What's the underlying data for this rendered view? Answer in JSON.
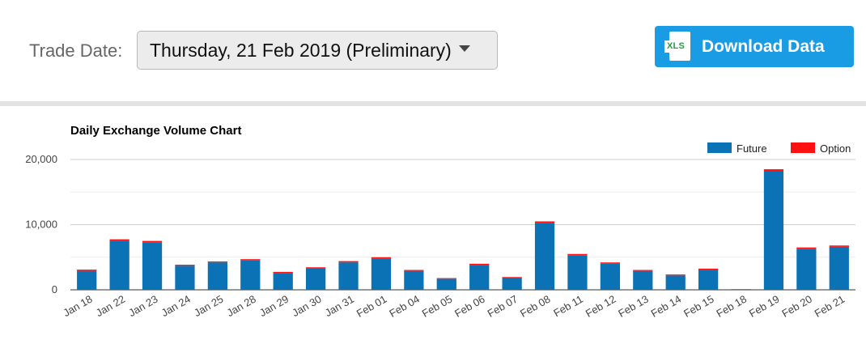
{
  "header": {
    "trade_date_label": "Trade Date:",
    "selected_date": "Thursday, 21 Feb 2019 (Preliminary)",
    "download_label": "Download Data",
    "download_icon_text": "XLS"
  },
  "colors": {
    "future": "#0b72b5",
    "option": "#ff1111",
    "button": "#1a9ce5",
    "grid": "#e3e3e3"
  },
  "chart_data": {
    "type": "bar",
    "stacked": true,
    "title": "Daily Exchange Volume Chart",
    "xlabel": "",
    "ylabel": "",
    "ylim": [
      0,
      20000
    ],
    "yticks": [
      0,
      10000,
      20000
    ],
    "ytick_labels": [
      "0",
      "10,000",
      "20,000"
    ],
    "grid": true,
    "legend_position": "top-right",
    "categories": [
      "Jan 18",
      "Jan 22",
      "Jan 23",
      "Jan 24",
      "Jan 25",
      "Jan 28",
      "Jan 29",
      "Jan 30",
      "Jan 31",
      "Feb 01",
      "Feb 04",
      "Feb 05",
      "Feb 06",
      "Feb 07",
      "Feb 08",
      "Feb 11",
      "Feb 12",
      "Feb 13",
      "Feb 14",
      "Feb 15",
      "Feb 18",
      "Feb 19",
      "Feb 20",
      "Feb 21"
    ],
    "series": [
      {
        "name": "Future",
        "color": "#0b72b5",
        "values": [
          2900,
          7500,
          7300,
          3700,
          4200,
          4500,
          2600,
          3300,
          4200,
          4800,
          2900,
          1700,
          3800,
          1800,
          10200,
          5300,
          4000,
          2900,
          2200,
          3100,
          100,
          18200,
          6300,
          6600
        ]
      },
      {
        "name": "Option",
        "color": "#ff1111",
        "values": [
          200,
          250,
          200,
          150,
          150,
          200,
          150,
          150,
          200,
          200,
          150,
          100,
          200,
          150,
          300,
          200,
          200,
          150,
          150,
          150,
          0,
          300,
          200,
          200
        ]
      }
    ]
  }
}
